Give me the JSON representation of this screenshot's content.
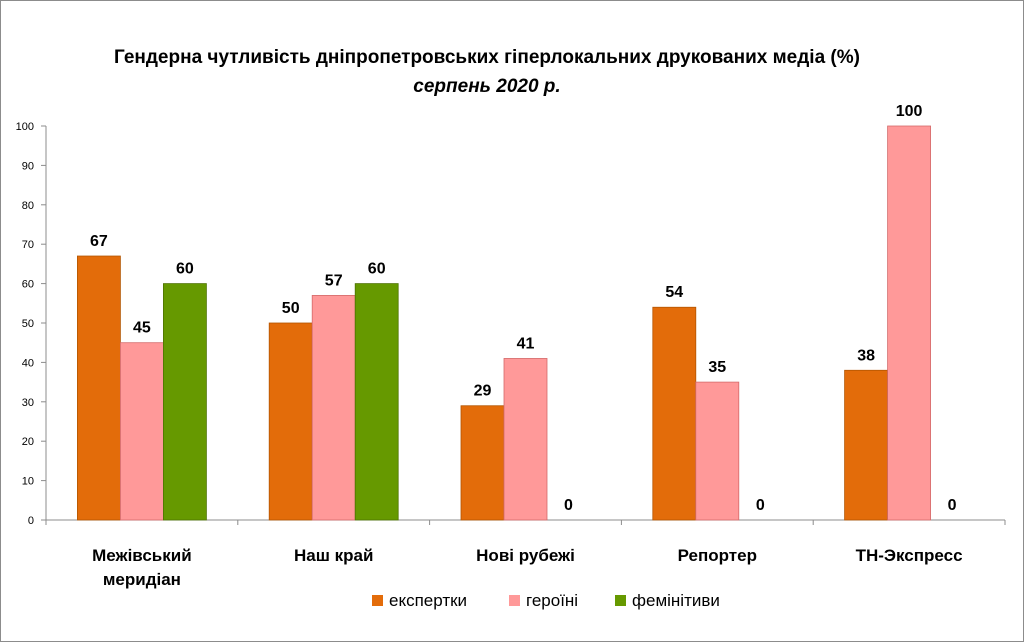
{
  "chart_data": {
    "type": "bar",
    "title": "Гендерна чутливість дніпропетровських гіперлокальних друкованих медіа (%)",
    "subtitle": "серпень 2020 р.",
    "categories": [
      [
        "Межівський",
        "меридіан"
      ],
      [
        "Наш край"
      ],
      [
        "Нові рубежі"
      ],
      [
        "Репортер"
      ],
      [
        "ТН-Экспресс"
      ]
    ],
    "series": [
      {
        "name": "експертки",
        "color": "#e36c0a",
        "values": [
          67,
          50,
          29,
          54,
          38
        ]
      },
      {
        "name": "героїні",
        "color": "#ff9999",
        "values": [
          45,
          57,
          41,
          35,
          100
        ]
      },
      {
        "name": "фемінітиви",
        "color": "#669900",
        "values": [
          60,
          60,
          0,
          0,
          0
        ]
      }
    ],
    "ylim": [
      0,
      100
    ],
    "yticks": [
      0,
      10,
      20,
      30,
      40,
      50,
      60,
      70,
      80,
      90,
      100
    ],
    "legend_position": "bottom",
    "grid": false
  }
}
